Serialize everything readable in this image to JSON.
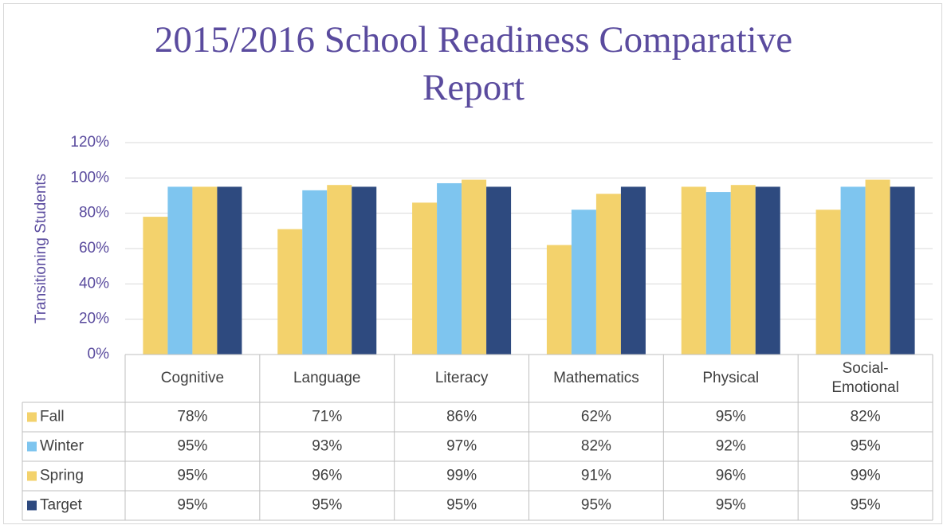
{
  "chart_data": {
    "type": "bar",
    "title": "2015/2016 School Readiness Comparative Report",
    "y_label": "Transitioning Students",
    "categories": [
      "Cognitive",
      "Language",
      "Literacy",
      "Mathematics",
      "Physical",
      "Social-Emotional"
    ],
    "series": [
      {
        "name": "Fall",
        "color": "#f3d26c",
        "values": [
          78,
          71,
          86,
          62,
          95,
          82
        ],
        "value_labels": [
          "78%",
          "71%",
          "86%",
          "62%",
          "95%",
          "82%"
        ]
      },
      {
        "name": "Winter",
        "color": "#7ec5ef",
        "values": [
          95,
          93,
          97,
          82,
          92,
          95
        ],
        "value_labels": [
          "95%",
          "93%",
          "97%",
          "82%",
          "92%",
          "95%"
        ]
      },
      {
        "name": "Spring",
        "color": "#f3d26c",
        "values": [
          95,
          96,
          99,
          91,
          96,
          99
        ],
        "value_labels": [
          "95%",
          "96%",
          "99%",
          "91%",
          "96%",
          "99%"
        ]
      },
      {
        "name": "Target",
        "color": "#2e4a7f",
        "values": [
          95,
          95,
          95,
          95,
          95,
          95
        ],
        "value_labels": [
          "95%",
          "95%",
          "95%",
          "95%",
          "95%",
          "95%"
        ]
      }
    ],
    "ylim": [
      0,
      120
    ],
    "yticks": [
      {
        "value": 0,
        "label": "0%"
      },
      {
        "value": 20,
        "label": "20%"
      },
      {
        "value": 40,
        "label": "40%"
      },
      {
        "value": 60,
        "label": "60%"
      },
      {
        "value": 80,
        "label": "80%"
      },
      {
        "value": 100,
        "label": "100%"
      },
      {
        "value": 120,
        "label": "120%"
      }
    ],
    "grid": true
  }
}
